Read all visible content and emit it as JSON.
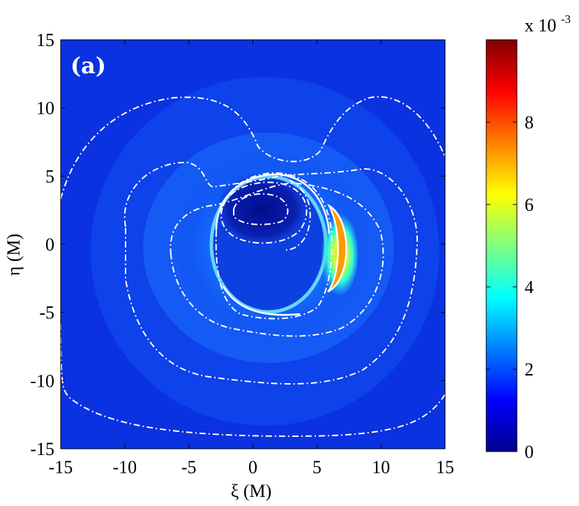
{
  "chart_data": {
    "type": "heatmap",
    "panel_label": "(a)",
    "xlabel": "ξ (M)",
    "ylabel": "η (M)",
    "xlim": [
      -15,
      15
    ],
    "ylim": [
      -15,
      15
    ],
    "x_ticks": [
      "-15",
      "-10",
      "-5",
      "0",
      "5",
      "10",
      "15"
    ],
    "y_ticks": [
      "-15",
      "-10",
      "-5",
      "0",
      "5",
      "10",
      "15"
    ],
    "x_tick_values": [
      -15,
      -10,
      -5,
      0,
      5,
      10,
      15
    ],
    "y_tick_values": [
      -15,
      -10,
      -5,
      0,
      5,
      10,
      15
    ],
    "colorbar": {
      "colormap": "jet",
      "range": [
        0,
        0.01
      ],
      "scale_label_base": "x 10",
      "scale_label_exp": "-3",
      "ticks": [
        "0",
        "2",
        "4",
        "6",
        "8"
      ],
      "tick_values": [
        0,
        2,
        4,
        6,
        8
      ],
      "max": 10
    },
    "features": [
      {
        "kind": "shadow_ring",
        "center": [
          0.5,
          0
        ],
        "radius_x": 5.2,
        "radius_y": 5.3
      },
      {
        "kind": "peak",
        "center": [
          6.2,
          -0.8
        ],
        "value_e3": 7.5
      },
      {
        "kind": "dark_region",
        "center": [
          0.5,
          2.5
        ],
        "value_e3": 0.2
      }
    ],
    "contour_color": "#ffffff",
    "contour_style": "dashed"
  }
}
